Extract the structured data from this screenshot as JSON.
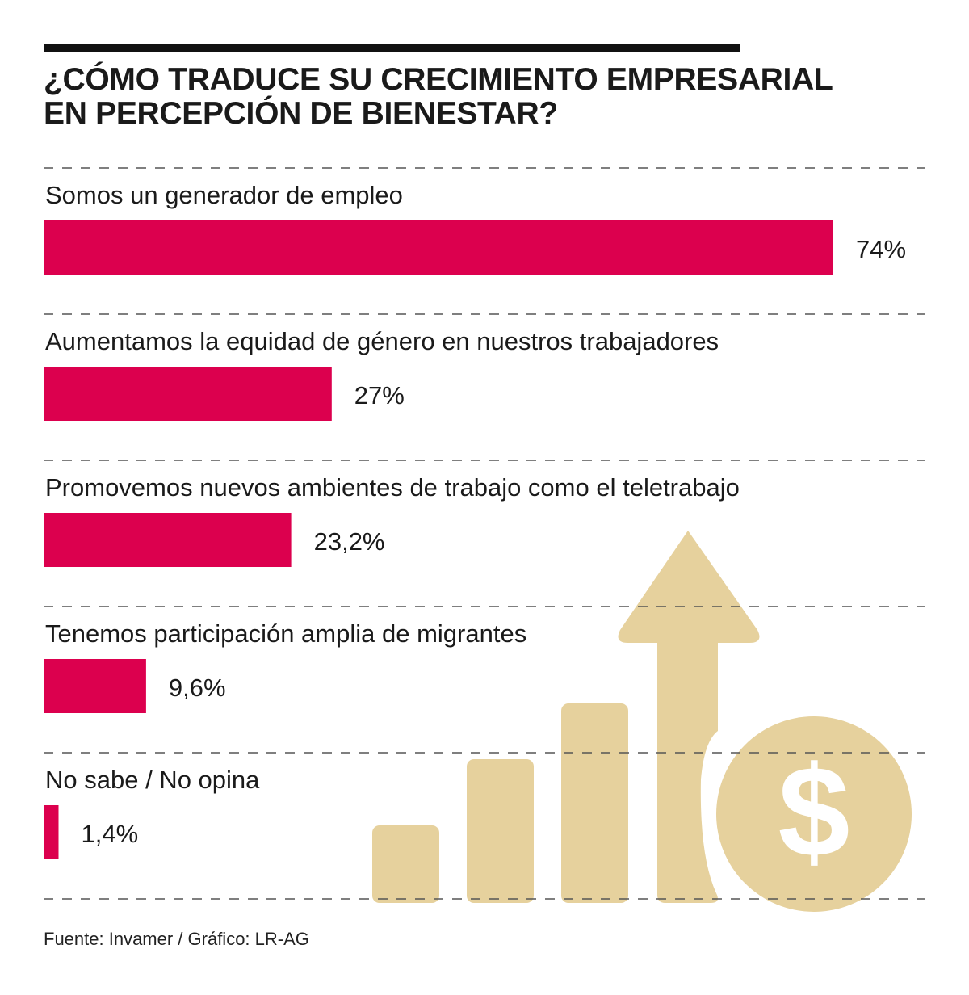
{
  "header": {
    "title_line1": "¿CÓMO TRADUCE SU CRECIMIENTO EMPRESARIAL",
    "title_line2": "EN PERCEPCIÓN DE BIENESTAR?"
  },
  "footer": {
    "source": "Fuente: Invamer / Gráfico: LR-AG"
  },
  "colors": {
    "bar": "#dc004e",
    "illustration": "#e6d19d",
    "text": "#1a1a1a",
    "divider": "#555555"
  },
  "illustration": {
    "icons": [
      "rising-bars-icon",
      "up-arrow-icon",
      "dollar-coin-icon"
    ]
  },
  "chart_data": {
    "type": "bar",
    "orientation": "horizontal",
    "title": "¿CÓMO TRADUCE SU CRECIMIENTO EMPRESARIAL EN PERCEPCIÓN DE BIENESTAR?",
    "categories": [
      "Somos un generador de empleo",
      "Aumentamos la equidad de género en nuestros trabajadores",
      "Promovemos nuevos ambientes de trabajo como el teletrabajo",
      "Tenemos participación amplia de migrantes",
      "No sabe / No opina"
    ],
    "values": [
      74,
      27,
      23.2,
      9.6,
      1.4
    ],
    "value_labels": [
      "74%",
      "27%",
      "23,2%",
      "9,6%",
      "1,4%"
    ],
    "unit": "%",
    "xlim": [
      0,
      74
    ],
    "grid": false,
    "legend": "none"
  }
}
